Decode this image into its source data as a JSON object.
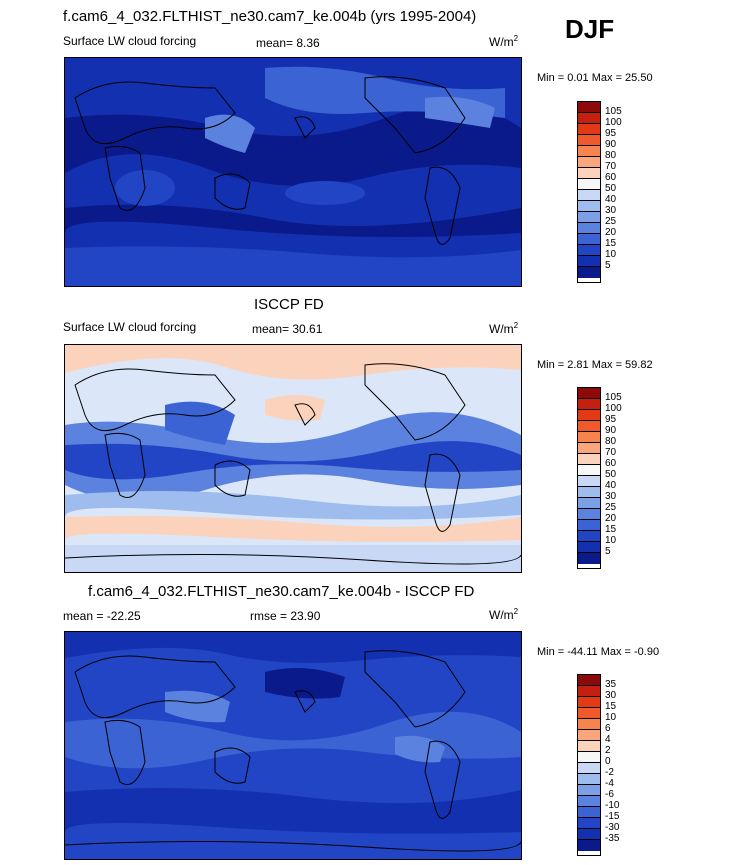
{
  "season": "DJF",
  "panels": [
    {
      "title": "f.cam6_4_032.FLTHIST_ne30.cam7_ke.004b (yrs 1995-2004)",
      "left_label": "Surface LW cloud forcing",
      "center_label": "mean=  8.36",
      "units": "W/m",
      "units_sup": "2",
      "minmax": "Min =   0.01  Max =  25.50",
      "levels": [
        "105",
        "100",
        "95",
        "90",
        "80",
        "70",
        "60",
        "50",
        "40",
        "30",
        "25",
        "20",
        "15",
        "10",
        "5"
      ],
      "colors": [
        "#8c0a0a",
        "#c5200f",
        "#e23a15",
        "#f05a2a",
        "#f7844f",
        "#f9a67c",
        "#fbd3bc",
        "#f7f7f7",
        "#c9d9f5",
        "#9fbcee",
        "#7ba0e6",
        "#5a82de",
        "#3b63d4",
        "#2245c5",
        "#1330b0",
        "#0a1a8a"
      ],
      "map": {
        "type": "contour map",
        "field": "Surface LW cloud forcing",
        "background": "#1330b0"
      }
    },
    {
      "title": "ISCCP FD",
      "left_label": "Surface LW cloud forcing",
      "center_label": "mean=  30.61",
      "units": "W/m",
      "units_sup": "2",
      "minmax": "Min =   2.81  Max =  59.82",
      "levels": [
        "105",
        "100",
        "95",
        "90",
        "80",
        "70",
        "60",
        "50",
        "40",
        "30",
        "25",
        "20",
        "15",
        "10",
        "5"
      ],
      "colors": [
        "#8c0a0a",
        "#c5200f",
        "#e23a15",
        "#f05a2a",
        "#f7844f",
        "#f9a67c",
        "#fbd3bc",
        "#f7f7f7",
        "#c9d9f5",
        "#9fbcee",
        "#7ba0e6",
        "#5a82de",
        "#3b63d4",
        "#2245c5",
        "#1330b0",
        "#0a1a8a"
      ],
      "map": {
        "type": "contour map",
        "field": "Surface LW cloud forcing",
        "background": "#dbe7f8"
      }
    },
    {
      "title": "f.cam6_4_032.FLTHIST_ne30.cam7_ke.004b - ISCCP FD",
      "left_label": "mean = -22.25",
      "center_label": "rmse =  23.90",
      "units": "W/m",
      "units_sup": "2",
      "minmax": "Min = -44.11  Max =  -0.90",
      "levels": [
        "35",
        "30",
        "15",
        "10",
        "6",
        "4",
        "2",
        "0",
        "-2",
        "-4",
        "-6",
        "-10",
        "-15",
        "-30",
        "-35"
      ],
      "colors": [
        "#8c0a0a",
        "#c5200f",
        "#e23a15",
        "#f05a2a",
        "#f7844f",
        "#f9a67c",
        "#fbd3bc",
        "#f7f7f7",
        "#c9d9f5",
        "#9fbcee",
        "#7ba0e6",
        "#5a82de",
        "#3b63d4",
        "#2245c5",
        "#1330b0",
        "#0a1a8a"
      ],
      "map": {
        "type": "contour map",
        "field": "difference",
        "background": "#2245c5"
      }
    }
  ],
  "chart_data": {
    "type": "heatmap",
    "season": "DJF",
    "variable": "Surface LW cloud forcing",
    "units": "W/m2",
    "panels": [
      {
        "title": "f.cam6_4_032.FLTHIST_ne30.cam7_ke.004b (yrs 1995-2004)",
        "mean": 8.36,
        "min": 0.01,
        "max": 25.5,
        "levels": [
          5,
          10,
          15,
          20,
          25,
          30,
          40,
          50,
          60,
          70,
          80,
          90,
          95,
          100,
          105
        ]
      },
      {
        "title": "ISCCP FD",
        "mean": 30.61,
        "min": 2.81,
        "max": 59.82,
        "levels": [
          5,
          10,
          15,
          20,
          25,
          30,
          40,
          50,
          60,
          70,
          80,
          90,
          95,
          100,
          105
        ]
      },
      {
        "title": "f.cam6_4_032.FLTHIST_ne30.cam7_ke.004b - ISCCP FD",
        "mean": -22.25,
        "rmse": 23.9,
        "min": -44.11,
        "max": -0.9,
        "levels": [
          -35,
          -30,
          -15,
          -10,
          -6,
          -4,
          -2,
          0,
          2,
          4,
          6,
          10,
          15,
          30,
          35
        ]
      }
    ]
  }
}
